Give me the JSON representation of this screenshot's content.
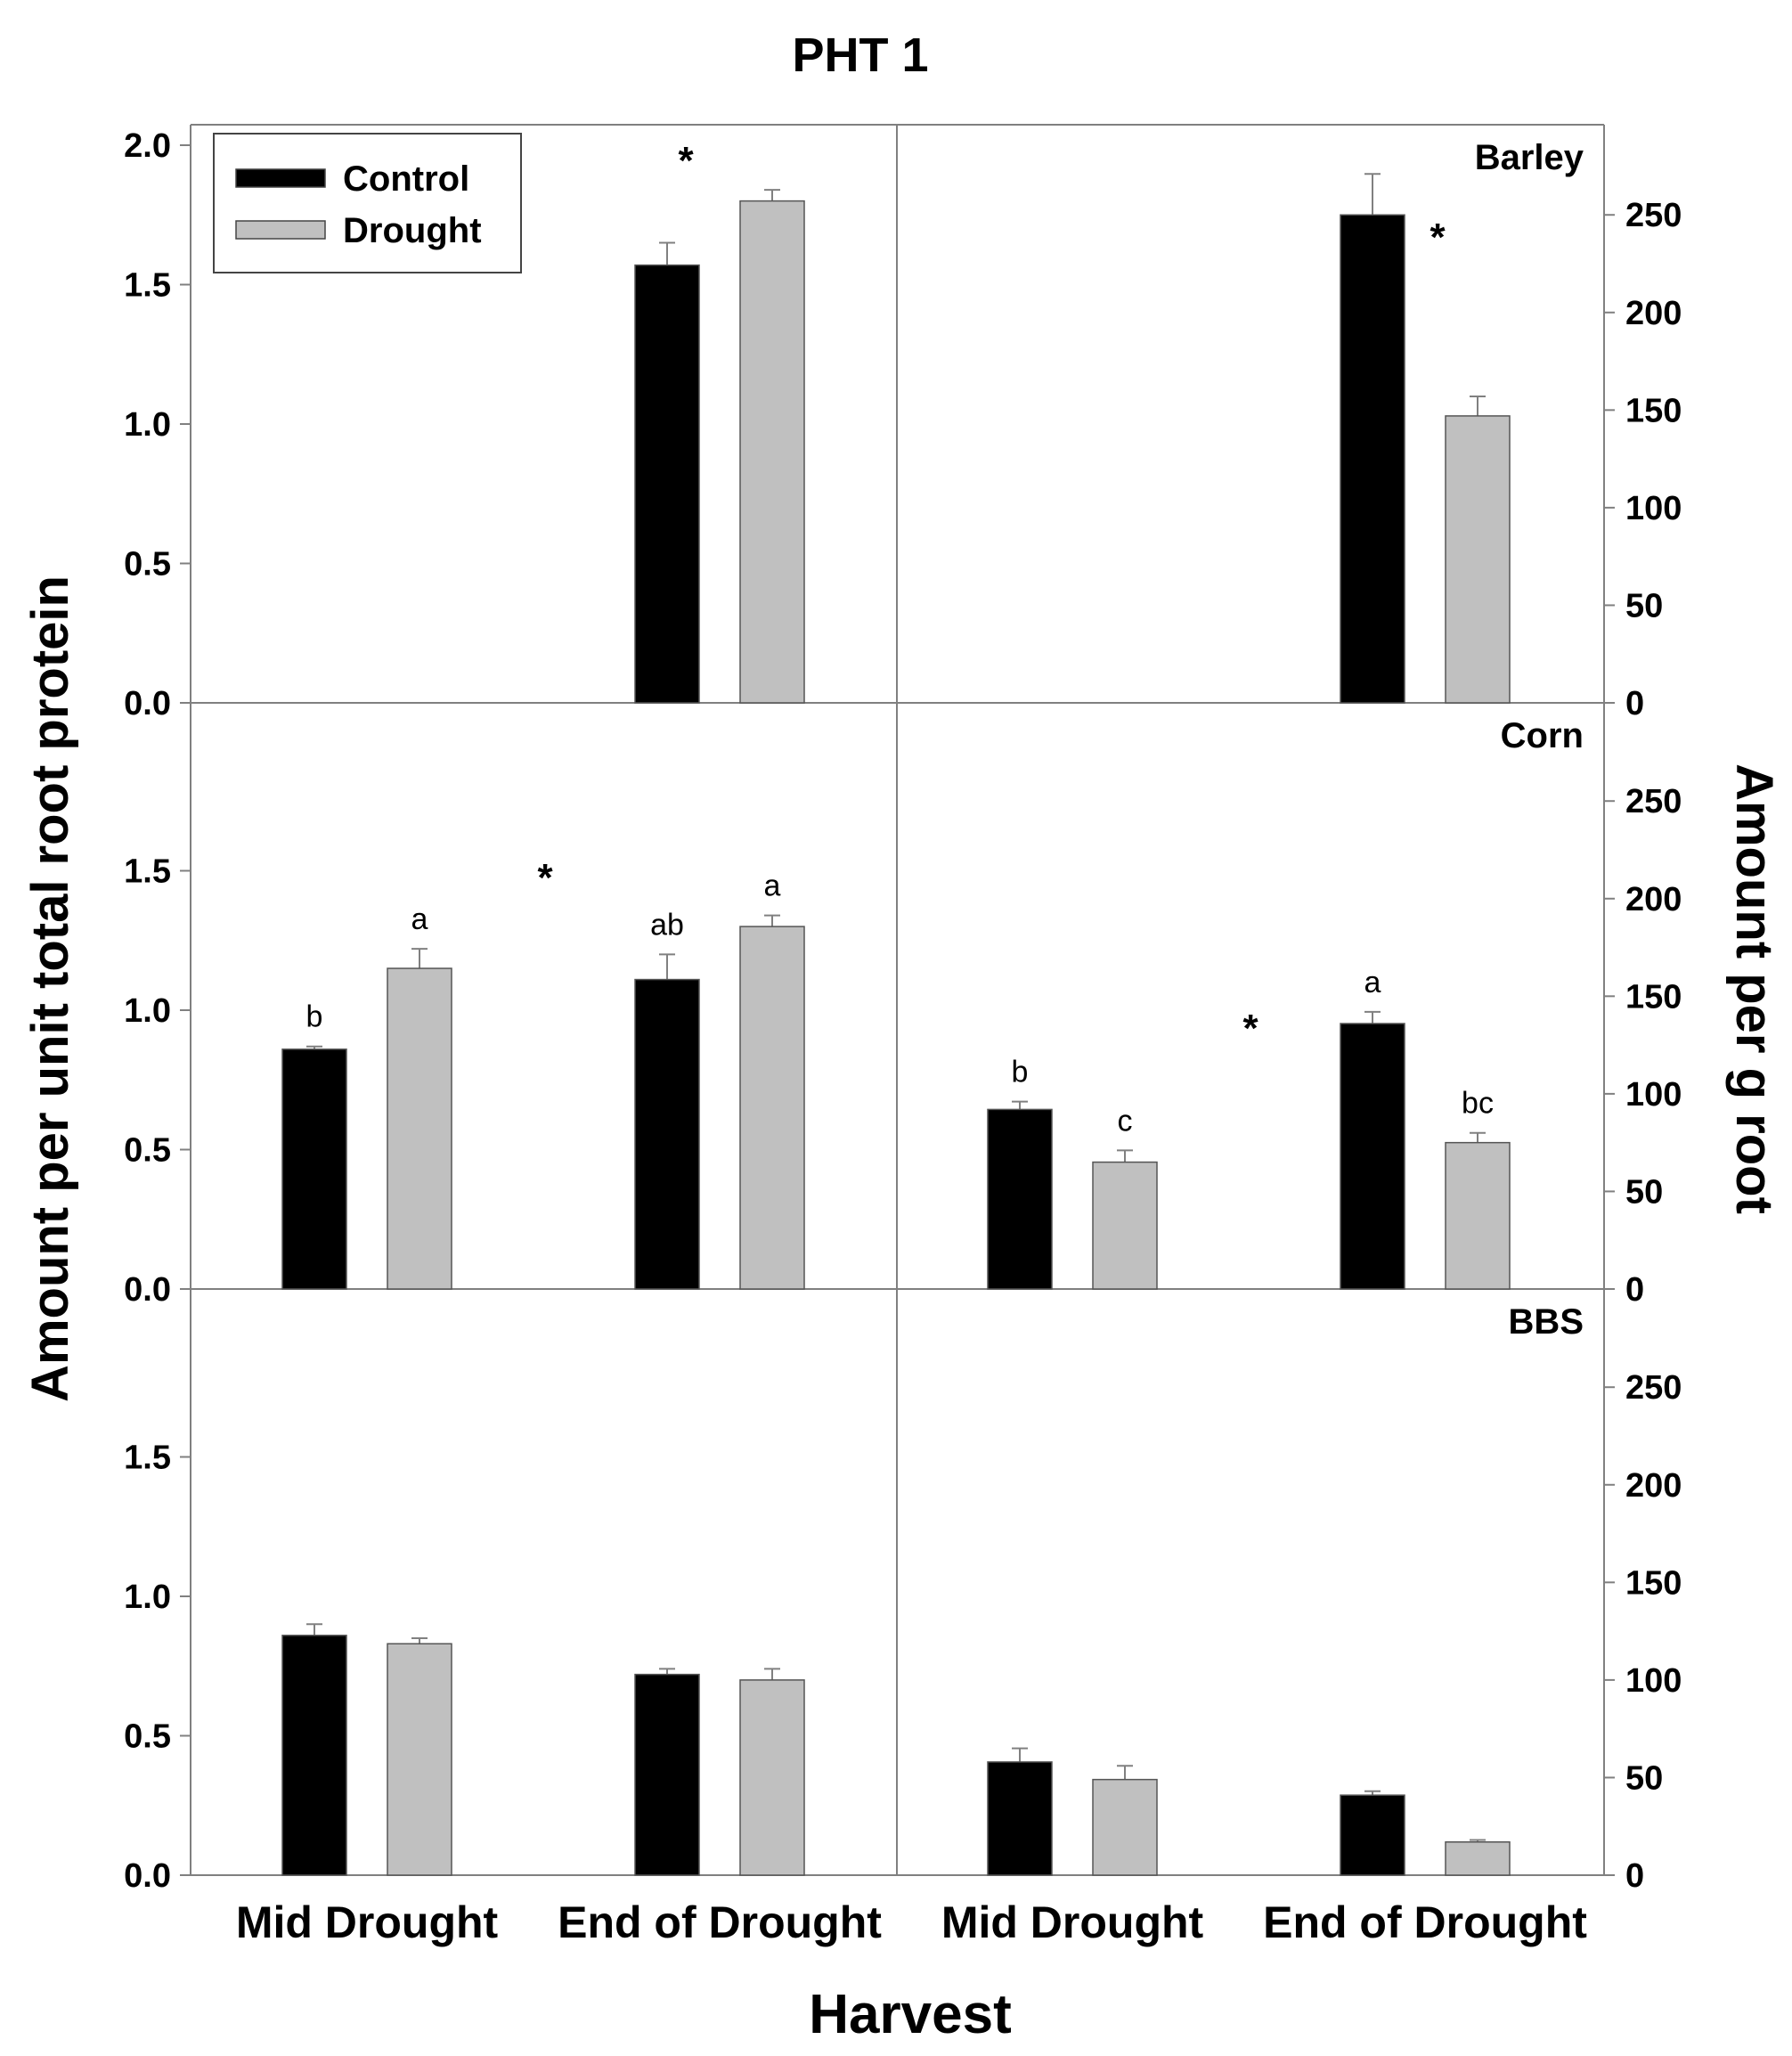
{
  "chart_data": {
    "type": "bar",
    "title": "PHT 1",
    "xlabel": "Harvest",
    "ylabel_left": "Amount per unit total root protein",
    "ylabel_right": "Amount per g root",
    "categories": [
      "Mid Drought",
      "End of Drought",
      "Mid Drought",
      "End of Drought"
    ],
    "legend": {
      "placement": "top-left",
      "entries": [
        {
          "name": "Control",
          "color": "#000000"
        },
        {
          "name": "Drought",
          "color": "#c0c0c0"
        }
      ]
    },
    "colors": {
      "control": "#000000",
      "drought": "#c0c0c0",
      "axis": "#808080"
    },
    "axes": {
      "left_ylim": [
        0,
        2.0
      ],
      "left_ticks_first": [
        "0.0",
        "0.5",
        "1.0",
        "1.5",
        "2.0"
      ],
      "left_ticks": [
        "0.0",
        "0.5",
        "1.0",
        "1.5"
      ],
      "right_ylim": [
        0,
        285.7
      ],
      "right_ticks_first": [
        "0",
        "50",
        "100",
        "150",
        "200",
        "250"
      ],
      "right_ticks": [
        "0",
        "50",
        "100",
        "150",
        "200",
        "250"
      ]
    },
    "panels": [
      {
        "name": "Barley",
        "groups": [
          {
            "category": "Mid Drought",
            "axis": "left",
            "control": null,
            "drought": null
          },
          {
            "category": "End of Drought",
            "axis": "left",
            "control": 1.57,
            "control_err": 0.08,
            "drought": 1.8,
            "drought_err": 0.04
          },
          {
            "category": "Mid Drought",
            "axis": "right",
            "control": null,
            "drought": null
          },
          {
            "category": "End of Drought",
            "axis": "right",
            "control": 250,
            "control_err": 21,
            "drought": 147,
            "drought_err": 10
          }
        ],
        "stars": [
          {
            "text": "*",
            "group": 1
          },
          {
            "text": "*",
            "group": 3
          }
        ]
      },
      {
        "name": "Corn",
        "groups": [
          {
            "category": "Mid Drought",
            "axis": "left",
            "control": 0.86,
            "control_err": 0.01,
            "drought": 1.15,
            "drought_err": 0.07,
            "control_letter": "b",
            "drought_letter": "a"
          },
          {
            "category": "End of Drought",
            "axis": "left",
            "control": 1.11,
            "control_err": 0.09,
            "drought": 1.3,
            "drought_err": 0.04,
            "control_letter": "ab",
            "drought_letter": "a"
          },
          {
            "category": "Mid Drought",
            "axis": "right",
            "control": 92,
            "control_err": 4,
            "drought": 65,
            "drought_err": 6,
            "control_letter": "b",
            "drought_letter": "c"
          },
          {
            "category": "End of Drought",
            "axis": "right",
            "control": 136,
            "control_err": 6,
            "drought": 75,
            "drought_err": 5,
            "control_letter": "a",
            "drought_letter": "bc"
          }
        ],
        "stars": [
          {
            "text": "*",
            "group": 0.5
          },
          {
            "text": "*",
            "group": 2.5
          }
        ]
      },
      {
        "name": "BBS",
        "groups": [
          {
            "category": "Mid Drought",
            "axis": "left",
            "control": 0.86,
            "control_err": 0.04,
            "drought": 0.83,
            "drought_err": 0.02
          },
          {
            "category": "End of Drought",
            "axis": "left",
            "control": 0.72,
            "control_err": 0.02,
            "drought": 0.7,
            "drought_err": 0.04
          },
          {
            "category": "Mid Drought",
            "axis": "right",
            "control": 58,
            "control_err": 7,
            "drought": 49,
            "drought_err": 7
          },
          {
            "category": "End of Drought",
            "axis": "right",
            "control": 41,
            "control_err": 2,
            "drought": 17,
            "drought_err": 1
          }
        ],
        "stars": []
      }
    ]
  }
}
